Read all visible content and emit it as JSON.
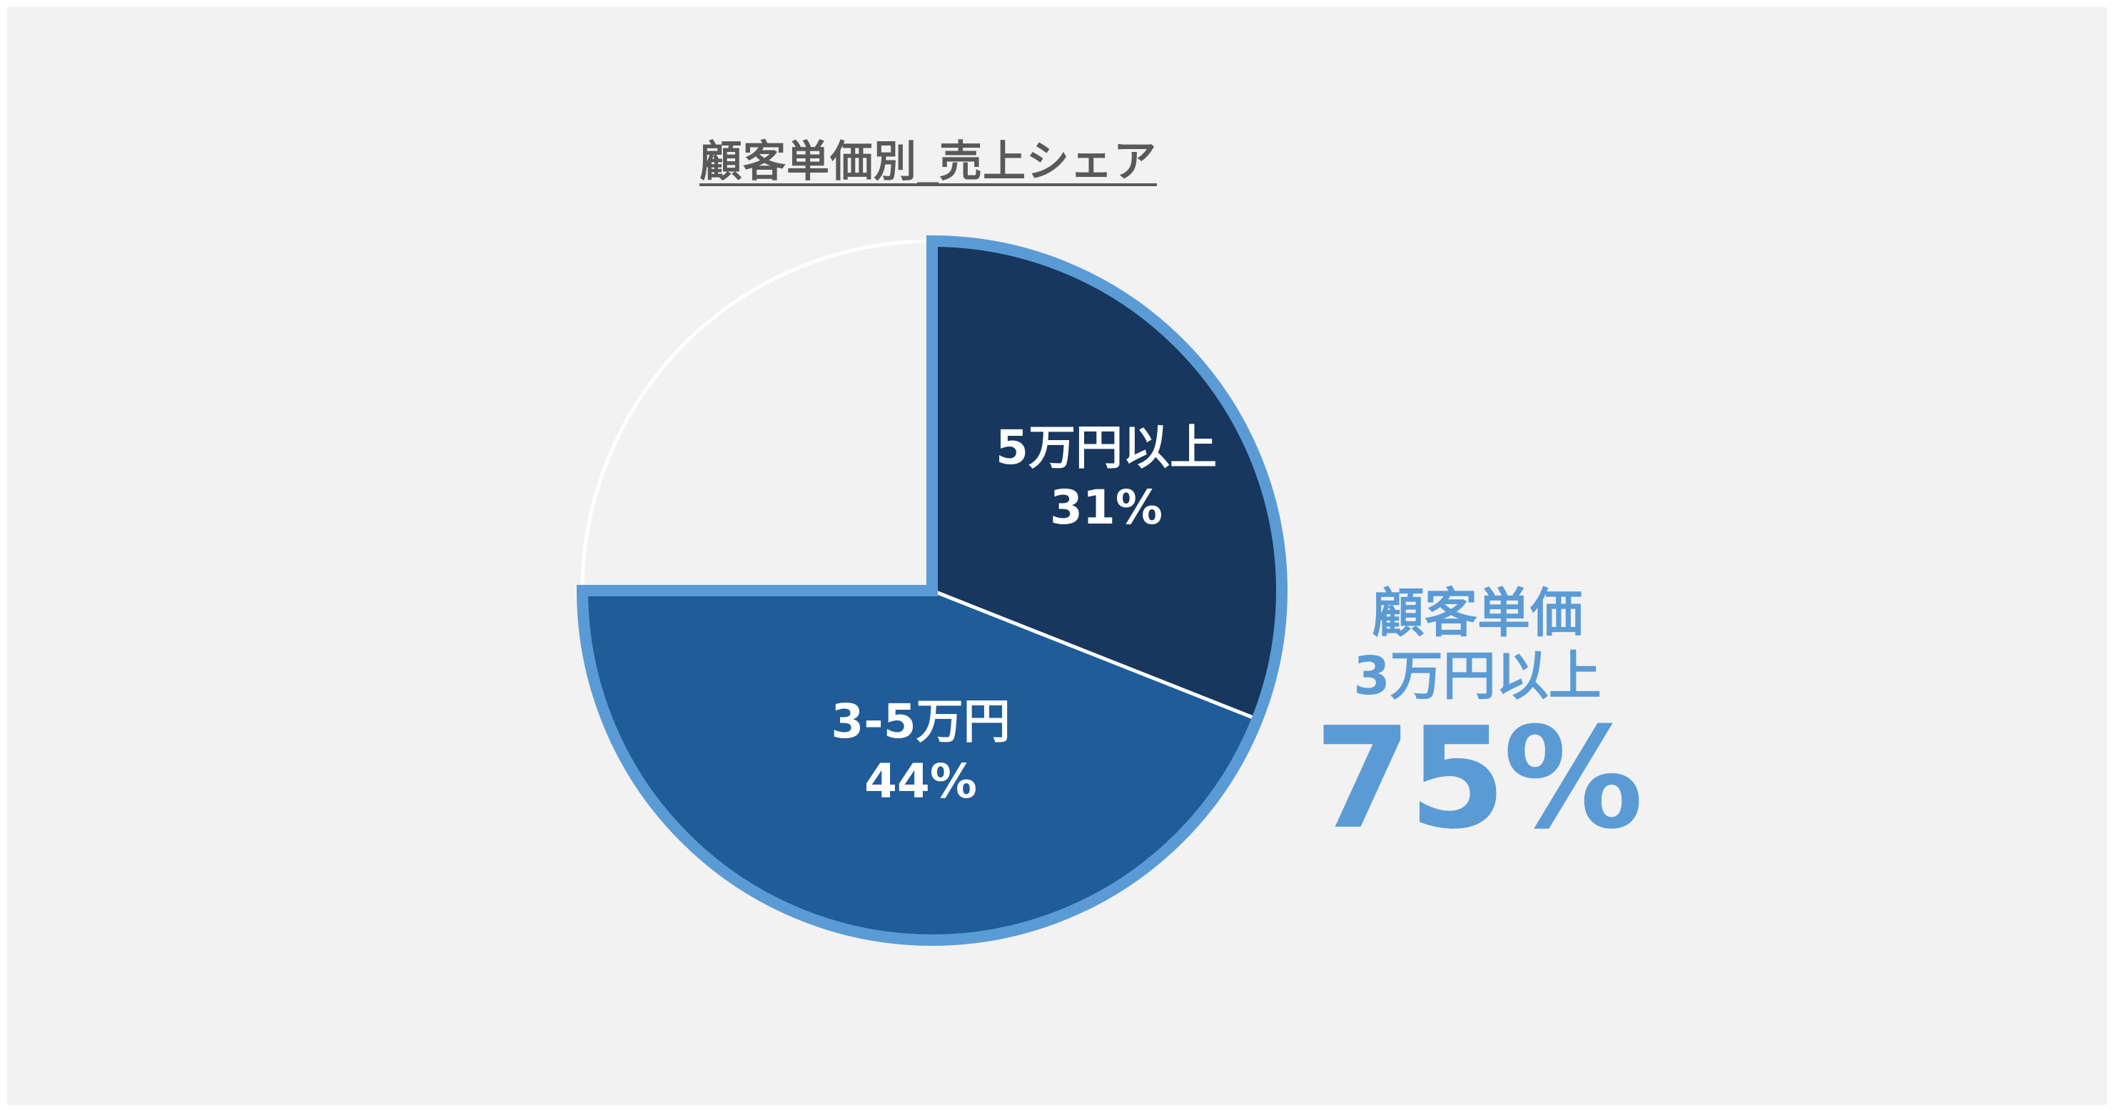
{
  "chart_data": {
    "type": "pie",
    "title": "顧客単価別_売上シェア",
    "slices": [
      {
        "name": "5万円以上",
        "value": 31,
        "label_value": "31%",
        "color": "#17375e"
      },
      {
        "name": "3-5万円",
        "value": 44,
        "label_value": "44%",
        "color": "#1f5c99"
      },
      {
        "name": "",
        "value": 25,
        "label_value": "",
        "color": "#f2f2f2"
      }
    ],
    "start_angle_deg": 0,
    "direction": "clockwise",
    "highlight_border_color": "#5b9bd5",
    "highlight_slices": [
      "5万円以上",
      "3-5万円"
    ]
  },
  "callout": {
    "line1": "顧客単価",
    "line2": "3万円以上",
    "value": "75%",
    "color": "#5b9bd5"
  },
  "background_color": "#f2f2f2"
}
